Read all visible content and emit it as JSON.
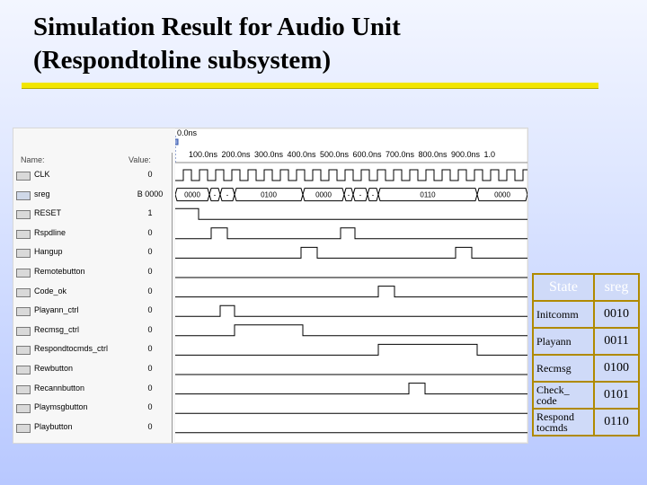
{
  "slide": {
    "title_line1": "Simulation Result for Audio Unit",
    "title_line2": "(Respondtoline subsystem)"
  },
  "waveform": {
    "header_name": "Name:",
    "header_value": "Value:",
    "marker_time": "0.0ns",
    "ticks": [
      "100.0ns",
      "200.0ns",
      "300.0ns",
      "400.0ns",
      "500.0ns",
      "600.0ns",
      "700.0ns",
      "800.0ns",
      "900.0ns",
      "1.0"
    ],
    "signals": [
      {
        "name": "CLK",
        "value": "0",
        "kind": "input"
      },
      {
        "name": "sreg",
        "value": "B 0000",
        "kind": "bus"
      },
      {
        "name": "RESET",
        "value": "1",
        "kind": "input"
      },
      {
        "name": "Rspdline",
        "value": "0",
        "kind": "input"
      },
      {
        "name": "Hangup",
        "value": "0",
        "kind": "input"
      },
      {
        "name": "Remotebutton",
        "value": "0",
        "kind": "input"
      },
      {
        "name": "Code_ok",
        "value": "0",
        "kind": "input"
      },
      {
        "name": "Playann_ctrl",
        "value": "0",
        "kind": "output"
      },
      {
        "name": "Recmsg_ctrl",
        "value": "0",
        "kind": "output"
      },
      {
        "name": "Respondtocmds_ctrl",
        "value": "0",
        "kind": "output"
      },
      {
        "name": "Rewbutton",
        "value": "0",
        "kind": "input"
      },
      {
        "name": "Recannbutton",
        "value": "0",
        "kind": "input"
      },
      {
        "name": "Playmsgbutton",
        "value": "0",
        "kind": "input"
      },
      {
        "name": "Playbutton",
        "value": "0",
        "kind": "input"
      }
    ],
    "sreg_segments": [
      "0000",
      "-",
      "-",
      "0100",
      "0000",
      "-",
      "-",
      "-",
      "0110",
      "0000"
    ]
  },
  "state_table": {
    "headers": [
      "State",
      "sreg"
    ],
    "rows": [
      {
        "state_line1": "Initcomm",
        "state_line2": "",
        "code": "0010"
      },
      {
        "state_line1": "Playann",
        "state_line2": "",
        "code": "0011"
      },
      {
        "state_line1": "Recmsg",
        "state_line2": "",
        "code": "0100"
      },
      {
        "state_line1": "Check_",
        "state_line2": "code",
        "code": "0101"
      },
      {
        "state_line1": "Respond",
        "state_line2": "tocmds",
        "code": "0110"
      }
    ]
  },
  "colors": {
    "rule": "#f2e600",
    "table_border": "#b08a00",
    "table_bg": "#cfdaf8",
    "header_text": "#ffffff"
  }
}
